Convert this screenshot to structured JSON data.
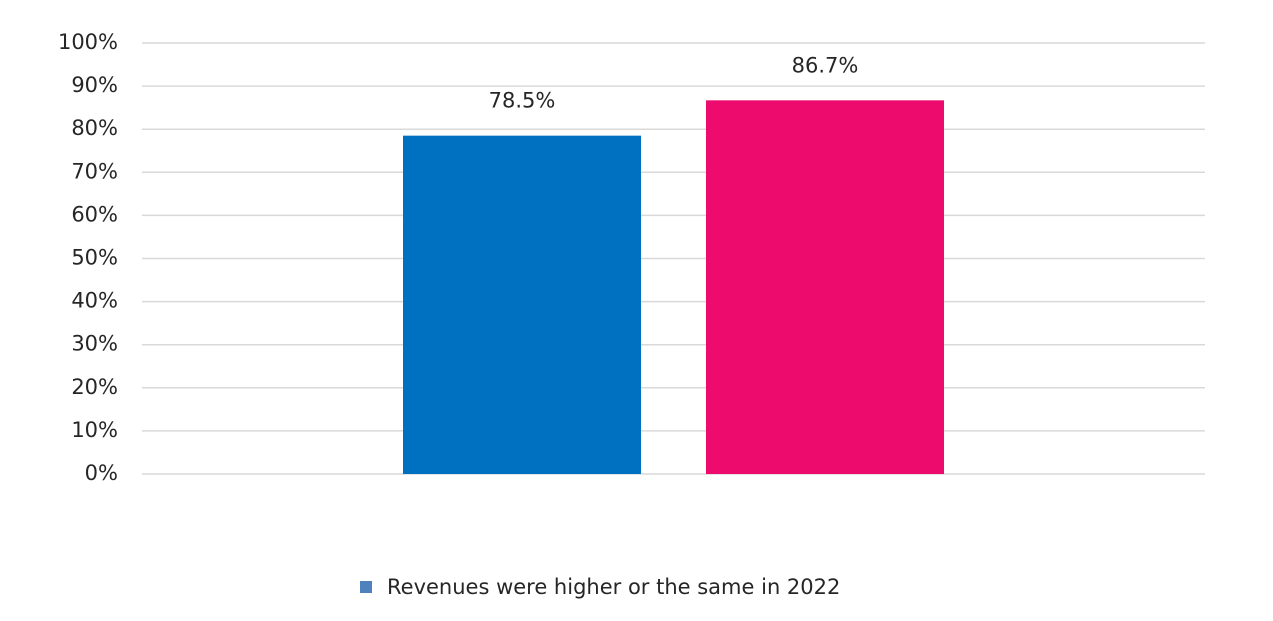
{
  "chart_data": {
    "type": "bar",
    "categories": [
      null,
      null
    ],
    "series": [
      {
        "name": "Revenues were higher or the same in 2022",
        "color": "#4f81bd",
        "colors": [
          "#0070c0",
          "#ed0c6e"
        ],
        "values": [
          78.5,
          86.7
        ],
        "value_labels": [
          "78.5%",
          "86.7%"
        ]
      }
    ],
    "ylim": [
      0,
      100
    ],
    "yticks": [
      {
        "value": 0,
        "label": "0%"
      },
      {
        "value": 10,
        "label": "10%"
      },
      {
        "value": 20,
        "label": "20%"
      },
      {
        "value": 30,
        "label": "30%"
      },
      {
        "value": 40,
        "label": "40%"
      },
      {
        "value": 50,
        "label": "50%"
      },
      {
        "value": 60,
        "label": "60%"
      },
      {
        "value": 70,
        "label": "70%"
      },
      {
        "value": 80,
        "label": "80%"
      },
      {
        "value": 90,
        "label": "90%"
      },
      {
        "value": 100,
        "label": "100%"
      }
    ],
    "grid": true,
    "legend": "bottom"
  }
}
